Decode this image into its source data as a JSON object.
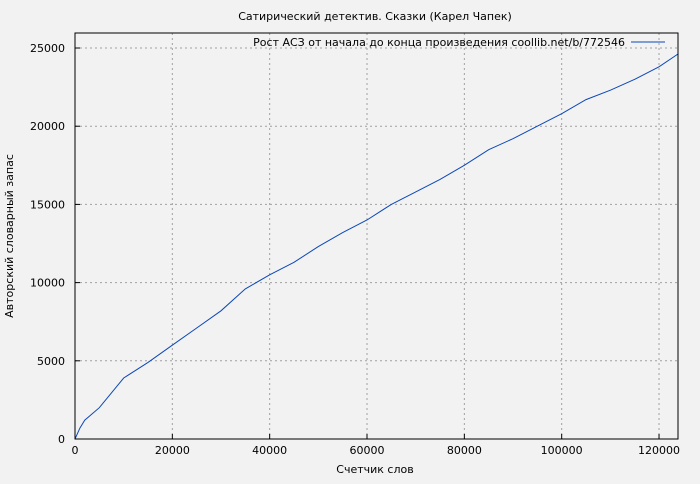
{
  "chart_data": {
    "type": "line",
    "title": "Сатирический детектив. Сказки (Карел Чапек)",
    "xlabel": "Счетчик слов",
    "ylabel": "Авторский словарный запас",
    "xlim": [
      0,
      123900
    ],
    "ylim": [
      0,
      25960
    ],
    "xticks": [
      0,
      20000,
      40000,
      60000,
      80000,
      100000,
      120000
    ],
    "yticks": [
      0,
      5000,
      10000,
      15000,
      20000,
      25000
    ],
    "grid": true,
    "legend_position": "top-right",
    "series": [
      {
        "name": "Рост АСЗ от начала до конца произведения coollib.net/b/772546",
        "color": "#0b48b8",
        "x": [
          0,
          1000,
          2000,
          5000,
          10000,
          15000,
          20000,
          25000,
          30000,
          35000,
          40000,
          45000,
          50000,
          55000,
          60000,
          65000,
          70000,
          75000,
          80000,
          85000,
          90000,
          95000,
          100000,
          105000,
          110000,
          115000,
          120000,
          123900
        ],
        "y": [
          0,
          700,
          1200,
          2000,
          3900,
          4900,
          6000,
          7100,
          8200,
          9600,
          10500,
          11300,
          12300,
          13200,
          14000,
          15000,
          15800,
          16600,
          17500,
          18500,
          19200,
          20000,
          20800,
          21700,
          22300,
          23000,
          23800,
          24620
        ]
      }
    ]
  }
}
